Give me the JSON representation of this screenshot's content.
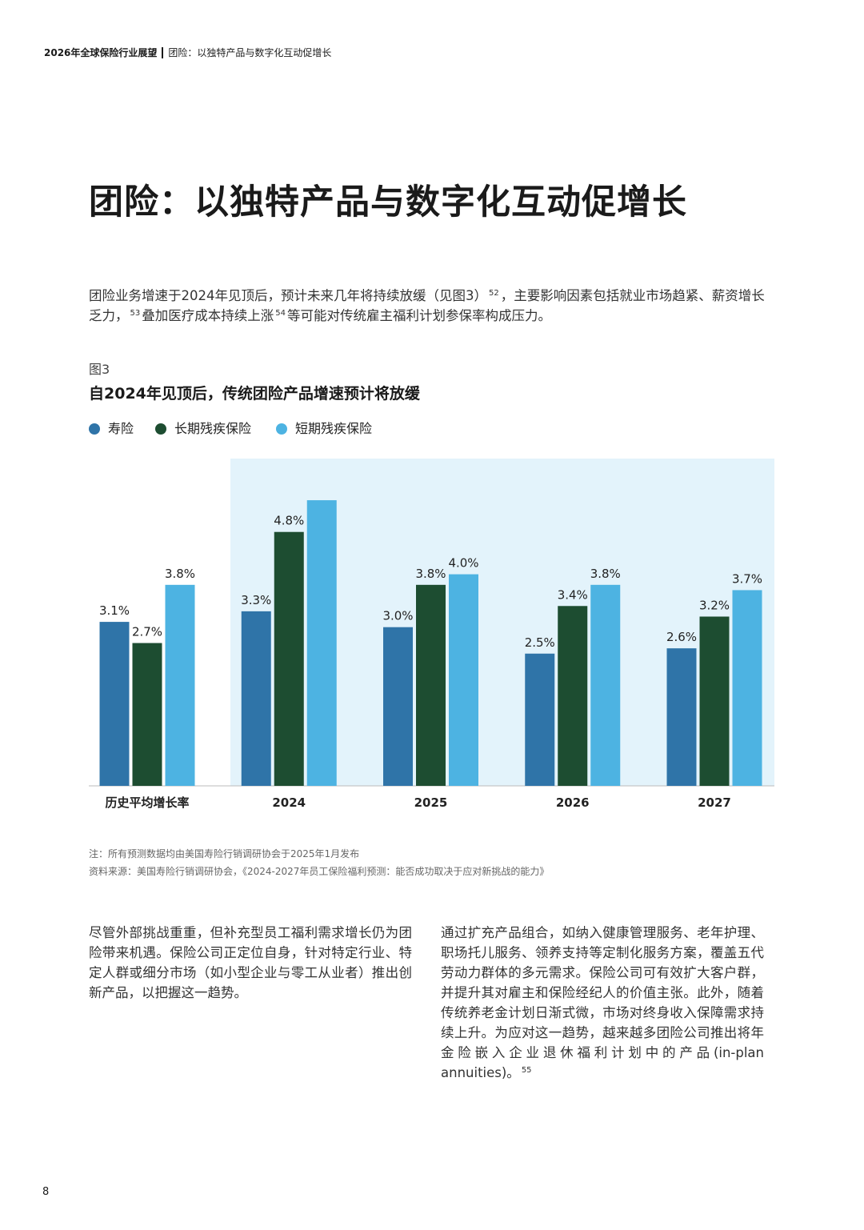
{
  "header": {
    "report": "2026年全球保险行业展望",
    "section": "团险：以独特产品与数字化互动促增长"
  },
  "title": "团险：以独特产品与数字化互动促增长",
  "intro": [
    "团险业务增速于2024年见顶后，预计未来几年将持续放缓（见图3）",
    "52",
    "，主要影响因素包括就业市场趋紧、薪资增长乏力，",
    "53",
    "叠加医疗成本持续上涨",
    "54",
    "等可能对传统雇主福利计划参保率构成压力。"
  ],
  "chart_data": {
    "type": "bar",
    "figure_label": "图3",
    "title": "自2024年见顶后，传统团险产品增速预计将放缓",
    "categories": [
      "历史平均增长率",
      "2024",
      "2025",
      "2026",
      "2027"
    ],
    "series": [
      {
        "name": "寿险",
        "color": "#2f74a8",
        "values": [
          3.1,
          3.3,
          3.0,
          2.5,
          2.6
        ],
        "value_labels": [
          "3.1%",
          "3.3%",
          "3.0%",
          "2.5%",
          "2.6%"
        ]
      },
      {
        "name": "长期残疾保险",
        "color": "#1d4d31",
        "values": [
          2.7,
          4.8,
          3.8,
          3.4,
          3.2
        ],
        "value_labels": [
          "2.7%",
          "4.8%",
          "3.8%",
          "3.4%",
          "3.2%"
        ]
      },
      {
        "name": "短期残疾保险",
        "color": "#4db3e2",
        "values": [
          3.8,
          5.4,
          4.0,
          3.8,
          3.7
        ],
        "value_labels": [
          "3.8%",
          null,
          "4.0%",
          "3.8%",
          "3.7%"
        ]
      }
    ],
    "note": "注：所有预测数据均由美国寿险行销调研协会于2025年1月发布",
    "source": "资料来源：美国寿险行销调研协会，《2024-2027年员工保险福利预测：能否成功取决于应对新挑战的能力》"
  },
  "body": {
    "left": "尽管外部挑战重重，但补充型员工福利需求增长仍为团险带来机遇。保险公司正定位自身，针对特定行业、特定人群或细分市场（如小型企业与零工从业者）推出创新产品，以把握这一趋势。",
    "right": [
      "通过扩充产品组合，如纳入健康管理服务、老年护理、职场托儿服务、领养支持等定制化服务方案，覆盖五代劳动力群体的多元需求。保险公司可有效扩大客户群，并提升其对雇主和保险经纪人的价值主张。此外，随着传统养老金计划日渐式微，市场对终身收入保障需求持续上升。为应对这一趋势，越来越多团险公司推出将年金险嵌入企业退休福利计划中的产品(in-plan annuities)。",
      "55"
    ]
  },
  "page_number": "8"
}
